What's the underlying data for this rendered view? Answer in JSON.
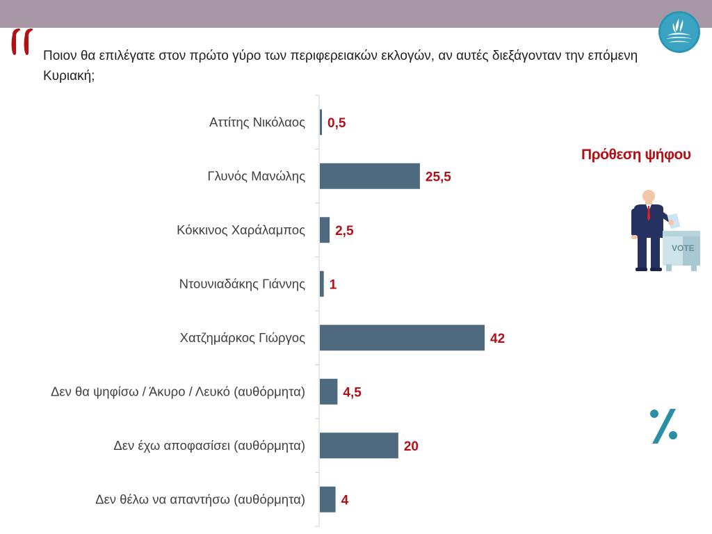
{
  "question": "Ποιον θα επιλέγατε στον πρώτο γύρο των περιφερειακών εκλογών, αν αυτές διεξάγονταν την επόμενη Κυριακή;",
  "side_title": "Πρόθεση ψήφου",
  "voter_icon": {
    "ballot_text": "VOTE"
  },
  "icons": [
    "quote-icon",
    "logo-icon",
    "voter-icon",
    "percent-icon"
  ],
  "colors": {
    "bar": "#4d6a7e",
    "value_label": "#b01016",
    "top_band": "#a898a7",
    "accent_teal": "#2b8fa3"
  },
  "chart_data": {
    "type": "bar",
    "orientation": "horizontal",
    "title": "",
    "xlabel": "",
    "ylabel": "",
    "categories": [
      "Αττίτης Νικόλαος",
      "Γλυνός Μανώλης",
      "Κόκκινος Χαράλαμπος",
      "Ντουνιαδάκης Γιάννης",
      "Χατζημάρκος Γιώργος",
      "Δεν θα ψηφίσω / Άκυρο / Λευκό (αυθόρμητα)",
      "Δεν έχω αποφασίσει (αυθόρμητα)",
      "Δεν θέλω να απαντήσω (αυθόρμητα)"
    ],
    "values": [
      0.5,
      25.5,
      2.5,
      1,
      42,
      4.5,
      20,
      4
    ],
    "value_labels": [
      "0,5",
      "25,5",
      "2,5",
      "1",
      "42",
      "4,5",
      "20",
      "4"
    ],
    "xlim": [
      0,
      42
    ],
    "grid": false,
    "legend": "none"
  }
}
